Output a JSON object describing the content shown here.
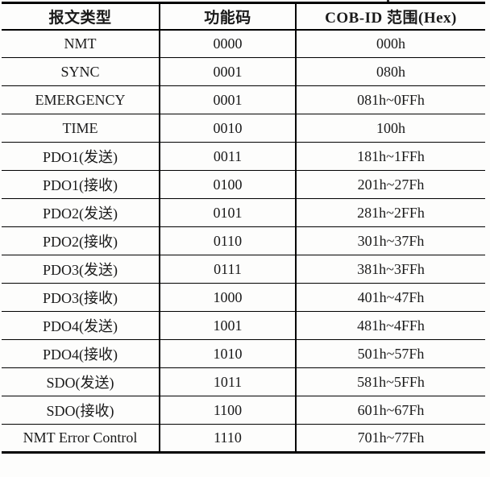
{
  "table": {
    "title_semantic": "CANopen COB-ID allocation table",
    "headers": {
      "message_type": "报文类型",
      "function_code": "功能码",
      "cob_id_range": "COB-ID 范围(Hex)"
    },
    "rows": [
      {
        "type": "NMT",
        "code": "0000",
        "cobid": "000h"
      },
      {
        "type": "SYNC",
        "code": "0001",
        "cobid": "080h"
      },
      {
        "type": "EMERGENCY",
        "code": "0001",
        "cobid": "081h~0FFh"
      },
      {
        "type": "TIME",
        "code": "0010",
        "cobid": "100h"
      },
      {
        "type": "PDO1(发送)",
        "code": "0011",
        "cobid": "181h~1FFh"
      },
      {
        "type": "PDO1(接收)",
        "code": "0100",
        "cobid": "201h~27Fh"
      },
      {
        "type": "PDO2(发送)",
        "code": "0101",
        "cobid": "281h~2FFh"
      },
      {
        "type": "PDO2(接收)",
        "code": "0110",
        "cobid": "301h~37Fh"
      },
      {
        "type": "PDO3(发送)",
        "code": "0111",
        "cobid": "381h~3FFh"
      },
      {
        "type": "PDO3(接收)",
        "code": "1000",
        "cobid": "401h~47Fh"
      },
      {
        "type": "PDO4(发送)",
        "code": "1001",
        "cobid": "481h~4FFh"
      },
      {
        "type": "PDO4(接收)",
        "code": "1010",
        "cobid": "501h~57Fh"
      },
      {
        "type": "SDO(发送)",
        "code": "1011",
        "cobid": "581h~5FFh"
      },
      {
        "type": "SDO(接收)",
        "code": "1100",
        "cobid": "601h~67Fh"
      },
      {
        "type": "NMT Error Control",
        "code": "1110",
        "cobid": "701h~77Fh"
      }
    ]
  },
  "colors": {
    "border": "#000000",
    "text": "#1a1a1a",
    "background": "#fdfdfc"
  }
}
